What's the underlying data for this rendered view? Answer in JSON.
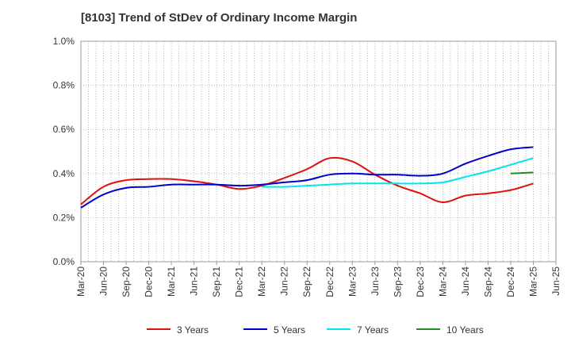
{
  "chart_data": {
    "type": "line",
    "title": "[8103]  Trend of StDev of Ordinary Income Margin",
    "x": [
      "Mar-20",
      "Jun-20",
      "Sep-20",
      "Dec-20",
      "Mar-21",
      "Jun-21",
      "Sep-21",
      "Dec-21",
      "Mar-22",
      "Jun-22",
      "Sep-22",
      "Dec-22",
      "Mar-23",
      "Jun-23",
      "Sep-23",
      "Dec-23",
      "Mar-24",
      "Jun-24",
      "Sep-24",
      "Dec-24",
      "Mar-25"
    ],
    "x_ticks": [
      "Mar-20",
      "Jun-20",
      "Sep-20",
      "Dec-20",
      "Mar-21",
      "Jun-21",
      "Sep-21",
      "Dec-21",
      "Mar-22",
      "Jun-22",
      "Sep-22",
      "Dec-22",
      "Mar-23",
      "Jun-23",
      "Sep-23",
      "Dec-23",
      "Mar-24",
      "Jun-24",
      "Sep-24",
      "Dec-24",
      "Mar-25",
      "Jun-25"
    ],
    "y_ticks": [
      "0.0%",
      "0.2%",
      "0.4%",
      "0.6%",
      "0.8%",
      "1.0%"
    ],
    "ylim": [
      0,
      1.0
    ],
    "y_unit": "%",
    "grid": true,
    "legend_position": "bottom",
    "series": [
      {
        "name": "3 Years",
        "color": "#dd1111",
        "values": [
          0.26,
          0.34,
          0.37,
          0.375,
          0.375,
          0.365,
          0.35,
          0.33,
          0.345,
          0.38,
          0.42,
          0.47,
          0.455,
          0.395,
          0.345,
          0.31,
          0.27,
          0.3,
          0.31,
          0.325,
          0.355
        ]
      },
      {
        "name": "5 Years",
        "color": "#0000cc",
        "values": [
          0.245,
          0.305,
          0.335,
          0.34,
          0.35,
          0.35,
          0.35,
          0.345,
          0.35,
          0.36,
          0.37,
          0.395,
          0.4,
          0.395,
          0.395,
          0.39,
          0.4,
          0.445,
          0.48,
          0.51,
          0.52
        ]
      },
      {
        "name": "7 Years",
        "color": "#00e5ee",
        "values": [
          null,
          null,
          null,
          null,
          null,
          null,
          null,
          null,
          0.34,
          0.34,
          0.345,
          0.35,
          0.355,
          0.355,
          0.355,
          0.355,
          0.36,
          0.385,
          0.41,
          0.44,
          0.47
        ]
      },
      {
        "name": "10 Years",
        "color": "#228b22",
        "values": [
          null,
          null,
          null,
          null,
          null,
          null,
          null,
          null,
          null,
          null,
          null,
          null,
          null,
          null,
          null,
          null,
          null,
          null,
          null,
          0.4,
          0.405
        ]
      }
    ]
  }
}
